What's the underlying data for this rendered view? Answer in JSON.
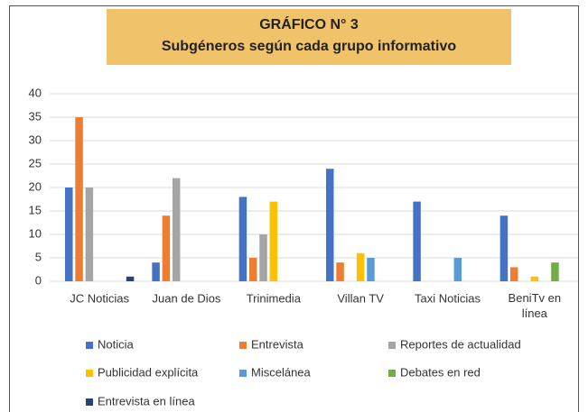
{
  "chart_data": {
    "type": "bar",
    "title": "GRÁFICO N° 3",
    "subtitle": "Subgéneros según cada grupo informativo",
    "categories": [
      "JC Noticias",
      "Juan de Dios",
      "Trinimedia",
      "Villan TV",
      "Taxi Noticias",
      "BeniTv en línea"
    ],
    "series": [
      {
        "name": "Noticia",
        "color": "#4472c4",
        "values": [
          20,
          4,
          18,
          24,
          17,
          14
        ]
      },
      {
        "name": "Entrevista",
        "color": "#ed7d31",
        "values": [
          35,
          14,
          5,
          4,
          0,
          3
        ]
      },
      {
        "name": "Reportes de actualidad",
        "color": "#a5a5a5",
        "values": [
          20,
          22,
          10,
          0,
          0,
          0
        ]
      },
      {
        "name": "Publicidad explícita",
        "color": "#ffc000",
        "values": [
          0,
          0,
          17,
          6,
          0,
          1
        ]
      },
      {
        "name": "Miscelánea",
        "color": "#5b9bd5",
        "values": [
          0,
          0,
          0,
          5,
          5,
          0
        ]
      },
      {
        "name": "Debates en red",
        "color": "#70ad47",
        "values": [
          0,
          0,
          0,
          0,
          0,
          4
        ]
      },
      {
        "name": "Entrevista en línea",
        "color": "#264478",
        "values": [
          1,
          0,
          0,
          0,
          0,
          0
        ]
      }
    ],
    "ylim": [
      0,
      40
    ],
    "yticks": [
      0,
      5,
      10,
      15,
      20,
      25,
      30,
      35,
      40
    ],
    "grid": true,
    "legend": "bottom"
  }
}
